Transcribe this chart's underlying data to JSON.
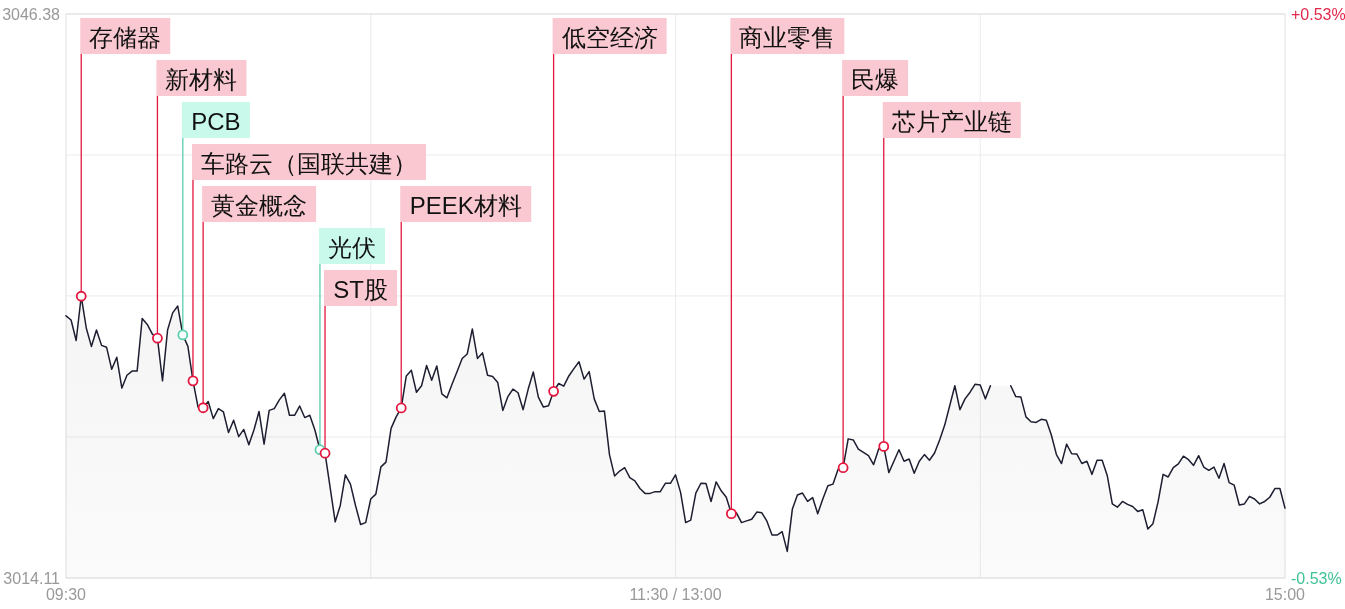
{
  "chart_data": {
    "type": "area",
    "categories": [
      "09:30",
      null,
      null,
      null,
      null,
      null,
      null,
      null,
      null,
      null,
      null,
      null,
      null,
      null,
      null,
      null,
      null,
      null,
      null,
      null,
      null,
      null,
      null,
      null,
      null,
      null,
      null,
      null,
      null,
      null,
      null,
      null,
      null,
      null,
      null,
      null,
      null,
      null,
      null,
      null,
      null,
      null,
      null,
      null,
      null,
      null,
      null,
      null,
      null,
      null,
      null,
      null,
      null,
      null,
      null,
      null,
      null,
      null,
      null,
      null,
      null,
      null,
      null,
      null,
      null,
      null,
      null,
      null,
      null,
      null,
      null,
      null,
      null,
      null,
      null,
      null,
      null,
      null,
      null,
      null,
      null,
      null,
      null,
      null,
      null,
      null,
      null,
      null,
      null,
      null,
      null,
      null,
      null,
      null,
      null,
      null,
      null,
      null,
      null,
      null,
      null,
      null,
      null,
      null,
      null,
      null,
      null,
      null,
      null,
      null,
      null,
      null,
      null,
      null,
      null,
      null,
      null,
      null,
      null,
      null,
      "11:30 / 13:00",
      null,
      null,
      null,
      null,
      null,
      null,
      null,
      null,
      null,
      null,
      null,
      null,
      null,
      null,
      null,
      null,
      null,
      null,
      null,
      null,
      null,
      null,
      null,
      null,
      null,
      null,
      null,
      null,
      null,
      null,
      null,
      null,
      null,
      null,
      null,
      null,
      null,
      null,
      null,
      null,
      null,
      null,
      null,
      null,
      null,
      null,
      null,
      null,
      null,
      null,
      null,
      null,
      null,
      null,
      null,
      null,
      null,
      null,
      null,
      null,
      null,
      null,
      null,
      null,
      null,
      null,
      null,
      null,
      null,
      null,
      null,
      null,
      null,
      null,
      null,
      null,
      null,
      null,
      null,
      null,
      null,
      null,
      null,
      null,
      null,
      null,
      null,
      null,
      null,
      null,
      null,
      null,
      null,
      null,
      null,
      null,
      null,
      null,
      null,
      null,
      null,
      null,
      null,
      null,
      null,
      null,
      null,
      null,
      null,
      null,
      null,
      null,
      null,
      null,
      null,
      null,
      null,
      null,
      null,
      "15:00"
    ],
    "ylim": [
      3014.11,
      3046.38
    ],
    "yticks": [
      3014.11,
      {
        "value": 3022.18,
        "label": null
      },
      {
        "value": 3030.25,
        "label": null
      },
      {
        "value": 3038.31,
        "label": null
      },
      3046.38
    ],
    "y2lim": [
      -0.53,
      0.53
    ],
    "y2ticks": [
      {
        "value": -0.53,
        "label": "-0.53%"
      },
      {
        "value": 0.53,
        "label": "+0.53%"
      }
    ],
    "grid": true,
    "series": [
      {
        "color": "#1d1e30",
        "values": [
          3029.11,
          3028.87,
          3027.7,
          3030.23,
          3028.4,
          3027.36,
          3028.3,
          3027.42,
          3027.31,
          3026.05,
          3026.74,
          3024.98,
          3025.71,
          3025.95,
          3025.95,
          3028.96,
          3028.62,
          3028.06,
          3027.83,
          3025.39,
          3028.3,
          3029.28,
          3029.67,
          3028.02,
          3027.36,
          3025.39,
          3023.89,
          3023.85,
          3024.21,
          3023.23,
          3023.8,
          3023.61,
          3022.43,
          3023.14,
          3022.2,
          3022.61,
          3021.73,
          3022.58,
          3023.64,
          3021.77,
          3023.7,
          3023.8,
          3024.3,
          3024.68,
          3023.42,
          3023.42,
          3023.95,
          3023.29,
          3023.42,
          3022.58,
          3021.45,
          3021.25,
          3019.29,
          3017.32,
          3018.26,
          3020.01,
          3019.48,
          3018.26,
          3017.17,
          3017.28,
          3018.63,
          3018.91,
          3020.47,
          3020.74,
          3022.67,
          3023.33,
          3023.84,
          3025.67,
          3025.99,
          3024.74,
          3025.11,
          3026.27,
          3025.43,
          3026.24,
          3024.64,
          3024.42,
          3025.2,
          3025.92,
          3026.67,
          3026.93,
          3028.36,
          3026.67,
          3026.99,
          3025.71,
          3025.64,
          3025.3,
          3023.7,
          3024.49,
          3024.92,
          3024.71,
          3023.74,
          3024.92,
          3025.9,
          3024.46,
          3023.89,
          3023.97,
          3024.79,
          3025.24,
          3025.09,
          3025.67,
          3026.09,
          3026.48,
          3025.49,
          3025.92,
          3024.36,
          3023.64,
          3023.67,
          3021.17,
          3019.95,
          3020.23,
          3020.42,
          3019.85,
          3019.67,
          3019.23,
          3018.95,
          3018.95,
          3019.05,
          3019.05,
          3019.53,
          3019.53,
          3020.01,
          3019.01,
          3017.28,
          3017.42,
          3018.97,
          3019.53,
          3019.52,
          3018.49,
          3019.61,
          3019.1,
          3018.73,
          3017.79,
          3017.84,
          3017.28,
          3017.38,
          3017.47,
          3017.88,
          3017.84,
          3017.36,
          3016.57,
          3016.57,
          3016.76,
          3015.63,
          3018.04,
          3018.86,
          3018.97,
          3018.49,
          3018.71,
          3017.79,
          3018.63,
          3019.39,
          3019.48,
          3020.32,
          3020.42,
          3022.07,
          3022.01,
          3021.49,
          3021.3,
          3021.11,
          3020.6,
          3021.49,
          3021.64,
          3020.14,
          3020.79,
          3021.45,
          3020.79,
          3020.92,
          3020.1,
          3020.79,
          3021.17,
          3020.85,
          3021.26,
          3022.01,
          3022.86,
          3023.98,
          3025.11,
          3023.74,
          3024.36,
          3024.74,
          3025.2,
          3025.15,
          3024.36,
          3025.11,
          null,
          null,
          null,
          3025.11,
          3024.49,
          3024.46,
          3023.33,
          3023.05,
          3023.01,
          3023.19,
          3023.14,
          3022.29,
          3021.17,
          3020.66,
          3021.77,
          3021.22,
          3021.21,
          3020.66,
          3020.79,
          3020.04,
          3020.85,
          3020.85,
          3019.98,
          3018.35,
          3018.16,
          3018.49,
          3018.32,
          3018.2,
          3017.92,
          3018.01,
          3016.91,
          3017.22,
          3018.45,
          3020.04,
          3019.89,
          3020.42,
          3020.64,
          3021.08,
          3020.88,
          3020.55,
          3021.11,
          3020.46,
          3020.27,
          3020.46,
          3019.82,
          3020.66,
          3019.57,
          3019.42,
          3018.29,
          3018.35,
          3018.78,
          3018.63,
          3018.35,
          3018.49,
          3018.73,
          3019.23,
          3019.23,
          3018.11
        ]
      },
      {
        "type": "scatter",
        "marker": "circle",
        "values": [
          null,
          null,
          null,
          3030.23,
          null,
          null,
          null,
          null,
          null,
          null,
          null,
          null,
          null,
          null,
          null,
          null,
          null,
          null,
          3027.83,
          null,
          null,
          null,
          null,
          3028.02,
          null,
          3025.39,
          null,
          3023.85,
          null,
          null,
          null,
          null,
          null,
          null,
          null,
          null,
          null,
          null,
          null,
          null,
          null,
          null,
          null,
          null,
          null,
          null,
          null,
          null,
          null,
          null,
          3021.45,
          3021.25,
          null,
          null,
          null,
          null,
          null,
          null,
          null,
          null,
          null,
          null,
          null,
          null,
          null,
          null,
          3023.84,
          null,
          null,
          null,
          null,
          null,
          null,
          null,
          null,
          null,
          null,
          null,
          null,
          null,
          null,
          null,
          null,
          null,
          null,
          null,
          null,
          null,
          null,
          null,
          null,
          null,
          null,
          null,
          null,
          null,
          3024.79,
          null,
          null,
          null,
          null,
          null,
          null,
          null,
          null,
          null,
          null,
          null,
          null,
          null,
          null,
          null,
          null,
          null,
          null,
          null,
          null,
          null,
          null,
          null,
          null,
          null,
          null,
          null,
          null,
          null,
          null,
          null,
          null,
          null,
          null,
          3017.79,
          null,
          null,
          null,
          null,
          null,
          null,
          null,
          null,
          null,
          null,
          null,
          null,
          null,
          null,
          null,
          null,
          null,
          null,
          null,
          null,
          null,
          3020.42,
          null,
          null,
          null,
          null,
          null,
          null,
          null,
          3021.64,
          null,
          null,
          null,
          null,
          null,
          null,
          null,
          null,
          null,
          null,
          null,
          null,
          null,
          null,
          null,
          null,
          null,
          null,
          null,
          null,
          null,
          null,
          null,
          null,
          null,
          null,
          null,
          null,
          null,
          null,
          null,
          null,
          null,
          null,
          null,
          null,
          null,
          null,
          null,
          null,
          null,
          null,
          null,
          null,
          null,
          null,
          null,
          null,
          null,
          null,
          null,
          null,
          null,
          null,
          null,
          null,
          null,
          null,
          null,
          null,
          null,
          null,
          null,
          null,
          null,
          null,
          null,
          null,
          null,
          null,
          null,
          null,
          null,
          null,
          null,
          null,
          null,
          null,
          null
        ],
        "colors": [
          null,
          null,
          null,
          "#e3173e",
          null,
          null,
          null,
          null,
          null,
          null,
          null,
          null,
          null,
          null,
          null,
          null,
          null,
          null,
          "#e3173e",
          null,
          null,
          null,
          null,
          "#5ccfae",
          null,
          "#e3173e",
          null,
          "#e3173e",
          null,
          null,
          null,
          null,
          null,
          null,
          null,
          null,
          null,
          null,
          null,
          null,
          null,
          null,
          null,
          null,
          null,
          null,
          null,
          null,
          null,
          null,
          "#5ccfae",
          "#e3173e",
          null,
          null,
          null,
          null,
          null,
          null,
          null,
          null,
          null,
          null,
          null,
          null,
          null,
          null,
          "#e3173e",
          null,
          null,
          null,
          null,
          null,
          null,
          null,
          null,
          null,
          null,
          null,
          null,
          null,
          null,
          null,
          null,
          null,
          null,
          null,
          null,
          null,
          null,
          null,
          null,
          null,
          null,
          null,
          null,
          null,
          "#e3173e",
          null,
          null,
          null,
          null,
          null,
          null,
          null,
          null,
          null,
          null,
          null,
          null,
          null,
          null,
          null,
          null,
          null,
          null,
          null,
          null,
          null,
          null,
          null,
          null,
          null,
          null,
          null,
          null,
          null,
          null,
          null,
          null,
          null,
          null,
          "#e3173e",
          null,
          null,
          null,
          null,
          null,
          null,
          null,
          null,
          null,
          null,
          null,
          null,
          null,
          null,
          null,
          null,
          null,
          null,
          null,
          null,
          null,
          "#e3173e",
          null,
          null,
          null,
          null,
          null,
          null,
          null,
          "#e3173e",
          null,
          null,
          null,
          null,
          null,
          null,
          null,
          null,
          null,
          null,
          null,
          null,
          null,
          null,
          null,
          null,
          null,
          null,
          null,
          null,
          null,
          null,
          null,
          null,
          null,
          null,
          null,
          null,
          null,
          null,
          null,
          null,
          null,
          null,
          null,
          null,
          null,
          null,
          null,
          null,
          null,
          null,
          null,
          null,
          null,
          null,
          null,
          null,
          null,
          null,
          null,
          null,
          null,
          null,
          null,
          null,
          null,
          null,
          null,
          null,
          null,
          null,
          null,
          null,
          null,
          null,
          null,
          null,
          null,
          null,
          null,
          null,
          null,
          null,
          null,
          null,
          null,
          null,
          null
        ],
        "value_labels": [
          null,
          null,
          null,
          "存储器",
          null,
          null,
          null,
          null,
          null,
          null,
          null,
          null,
          null,
          null,
          null,
          null,
          null,
          null,
          "新材料",
          null,
          null,
          null,
          null,
          "PCB",
          null,
          "车路云（国联共建）",
          null,
          "黄金概念",
          null,
          null,
          null,
          null,
          null,
          null,
          null,
          null,
          null,
          null,
          null,
          null,
          null,
          null,
          null,
          null,
          null,
          null,
          null,
          null,
          null,
          null,
          "光伏",
          "ST股",
          null,
          null,
          null,
          null,
          null,
          null,
          null,
          null,
          null,
          null,
          null,
          null,
          null,
          null,
          "PEEK材料",
          null,
          null,
          null,
          null,
          null,
          null,
          null,
          null,
          null,
          null,
          null,
          null,
          null,
          null,
          null,
          null,
          null,
          null,
          null,
          null,
          null,
          null,
          null,
          null,
          null,
          null,
          null,
          null,
          null,
          "低空经济",
          null,
          null,
          null,
          null,
          null,
          null,
          null,
          null,
          null,
          null,
          null,
          null,
          null,
          null,
          null,
          null,
          null,
          null,
          null,
          null,
          null,
          null,
          null,
          null,
          null,
          null,
          null,
          null,
          null,
          null,
          null,
          null,
          null,
          null,
          "商业零售",
          null,
          null,
          null,
          null,
          null,
          null,
          null,
          null,
          null,
          null,
          null,
          null,
          null,
          null,
          null,
          null,
          null,
          null,
          null,
          null,
          null,
          "民爆",
          null,
          null,
          null,
          null,
          null,
          null,
          null,
          "芯片产业链",
          null,
          null,
          null,
          null,
          null,
          null,
          null,
          null,
          null,
          null,
          null,
          null,
          null,
          null,
          null,
          null,
          null,
          null,
          null,
          null,
          null,
          null,
          null,
          null,
          null,
          null,
          null,
          null,
          null,
          null,
          null,
          null,
          null,
          null,
          null,
          null,
          null,
          null,
          null,
          null,
          null,
          null,
          null,
          null,
          null,
          null,
          null,
          null,
          null,
          null,
          null,
          null,
          null,
          null,
          null,
          null,
          null,
          null,
          null,
          null,
          null,
          null,
          null,
          null,
          null,
          null,
          null,
          null,
          null,
          null,
          null,
          null,
          null,
          null,
          null,
          null,
          null,
          null,
          null
        ]
      }
    ]
  }
}
